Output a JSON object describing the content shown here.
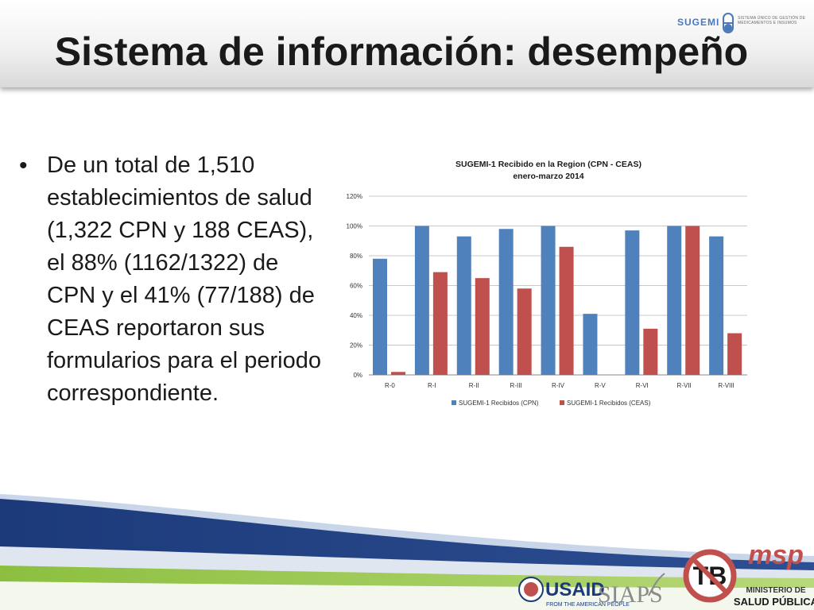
{
  "slide": {
    "title": "Sistema de información: desempeño",
    "bullet": "De un total de 1,510 establecimientos de salud (1,322 CPN y 188 CEAS), el 88% (1162/1322) de CPN y el 41% (77/188) de CEAS reportaron sus formularios para el periodo correspondiente."
  },
  "header_logo": {
    "name": "SUGEMI",
    "tagline": "SISTEMA ÚNICO DE GESTIÓN DE MEDICAMENTOS E INSUMOS",
    "color": "#4a78b8"
  },
  "chart_data": {
    "type": "bar",
    "title": "SUGEMI-1 Recibido en la Region (CPN - CEAS)",
    "subtitle": "enero-marzo 2014",
    "categories": [
      "R-0",
      "R-I",
      "R-II",
      "R-III",
      "R-IV",
      "R-V",
      "R-VI",
      "R-VII",
      "R-VIII"
    ],
    "series": [
      {
        "name": "SUGEMI-1 Recibidos (CPN)",
        "color": "#4f81bd",
        "values": [
          78,
          100,
          93,
          98,
          100,
          41,
          97,
          100,
          93
        ]
      },
      {
        "name": "SUGEMI-1 Recibidos (CEAS)",
        "color": "#c0504d",
        "values": [
          2,
          69,
          65,
          58,
          86,
          null,
          31,
          100,
          28
        ]
      }
    ],
    "yticks": [
      "0%",
      "20%",
      "40%",
      "60%",
      "80%",
      "100%",
      "120%"
    ],
    "ylim": [
      0,
      120
    ],
    "grid": true,
    "legend_position": "bottom"
  },
  "footer_logos": {
    "usaid": "USAID",
    "usaid_tagline": "FROM THE AMERICAN PEOPLE",
    "siaps": "SIAPS",
    "tb": "TB",
    "msp": "msp",
    "msp_line1": "MINISTERIO DE",
    "msp_line2": "SALUD PÚBLICA"
  }
}
